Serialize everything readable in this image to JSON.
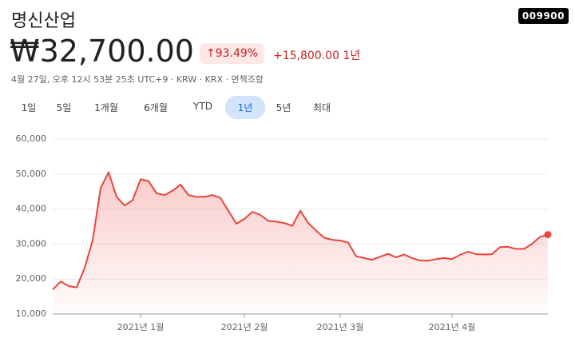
{
  "header": {
    "name": "명신산업",
    "ticker": "009900",
    "price": "₩32,700.00",
    "change_pct": "↑93.49%",
    "change": "+15,800.00",
    "period": "1년",
    "meta": "4월 27일, 오후 12시 53분 25초 UTC+9 · KRW · KRX · 면책조항"
  },
  "tabs": {
    "items": [
      "1일",
      "5일",
      "1개월",
      "6개월",
      "YTD",
      "1년",
      "5년",
      "최대"
    ],
    "selected": 5
  },
  "chart_data": {
    "type": "line",
    "color": "#e8453c",
    "categories": [
      null,
      null,
      null,
      null,
      null,
      null,
      null,
      null,
      null,
      null,
      null,
      "2021년 1월",
      null,
      null,
      null,
      null,
      null,
      null,
      null,
      null,
      null,
      null,
      null,
      null,
      "2021년 2월",
      null,
      null,
      null,
      null,
      null,
      null,
      null,
      null,
      null,
      null,
      null,
      "2021년 3월",
      null,
      null,
      null,
      null,
      null,
      null,
      null,
      null,
      null,
      null,
      null,
      null,
      null,
      "2021년 4월",
      null,
      null,
      null,
      null,
      null,
      null,
      null,
      null,
      null,
      null,
      null,
      null
    ],
    "values": [
      17000,
      19300,
      18000,
      17600,
      23200,
      31000,
      46000,
      50500,
      43500,
      41000,
      42500,
      48500,
      48000,
      44500,
      44000,
      45200,
      47000,
      44000,
      43500,
      43500,
      44000,
      43200,
      39500,
      35800,
      37200,
      39200,
      38300,
      36600,
      36400,
      36000,
      35200,
      39500,
      36000,
      33800,
      31800,
      31200,
      31000,
      30400,
      26500,
      26000,
      25500,
      26400,
      27200,
      26200,
      27000,
      26000,
      25300,
      25200,
      25700,
      26000,
      25700,
      26900,
      27800,
      27100,
      27000,
      27100,
      29100,
      29200,
      28600,
      28600,
      30000,
      32000,
      32700
    ],
    "ylim": [
      10000,
      60000
    ],
    "yticks": [
      {
        "value": 10000,
        "label": "10,000"
      },
      {
        "value": 20000,
        "label": "20,000"
      },
      {
        "value": 30000,
        "label": "30,000"
      },
      {
        "value": 40000,
        "label": "40,000"
      },
      {
        "value": 50000,
        "label": "50,000"
      },
      {
        "value": 60000,
        "label": "60,000"
      }
    ],
    "grid": true
  }
}
